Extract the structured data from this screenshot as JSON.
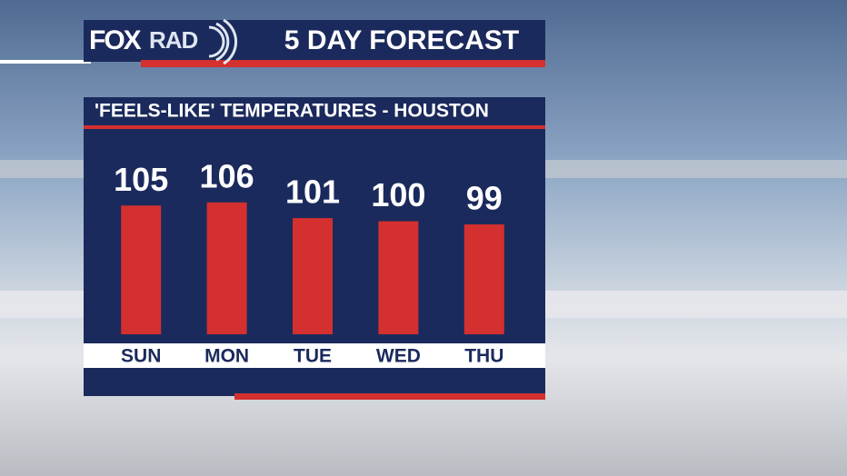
{
  "logo": {
    "fox": "FOX",
    "rad": "RAD"
  },
  "chart_data": {
    "type": "bar",
    "title": "5 DAY FORECAST",
    "subtitle": "'FEELS-LIKE' TEMPERATURES - HOUSTON",
    "categories": [
      "SUN",
      "MON",
      "TUE",
      "WED",
      "THU"
    ],
    "values": [
      105,
      106,
      101,
      100,
      99
    ],
    "color": "#d3302f",
    "ylim": [
      64,
      110
    ]
  }
}
